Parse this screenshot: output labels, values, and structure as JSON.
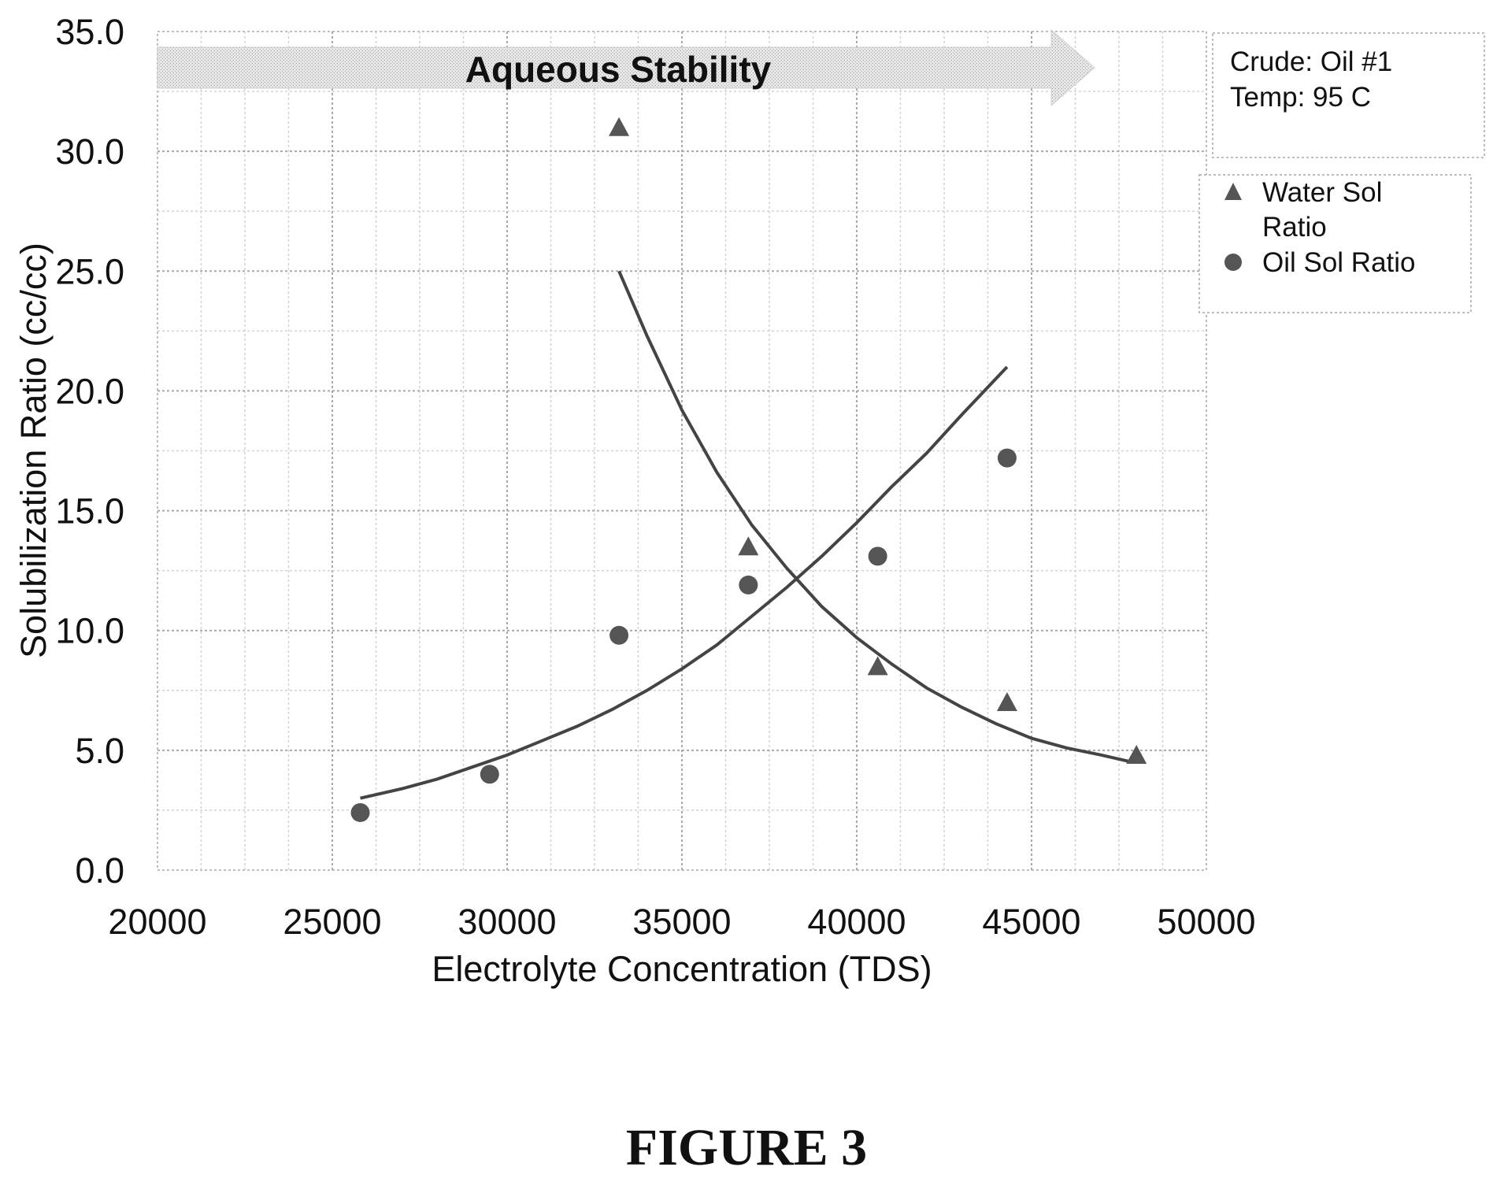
{
  "chart_data": {
    "type": "scatter",
    "xlabel": "Electrolyte Concentration (TDS)",
    "ylabel": "Solubilization Ratio (cc/cc)",
    "xlim": [
      20000,
      50000
    ],
    "ylim": [
      0,
      35
    ],
    "x_ticks": [
      "20000",
      "25000",
      "30000",
      "35000",
      "40000",
      "45000",
      "50000"
    ],
    "y_ticks": [
      "0.0",
      "5.0",
      "10.0",
      "15.0",
      "20.0",
      "25.0",
      "30.0",
      "35.0"
    ],
    "grid": true,
    "legend_position": "top-right",
    "series": [
      {
        "name": "Water Sol Ratio",
        "marker": "triangle",
        "color": "#555555",
        "points": [
          {
            "x": 33200,
            "y": 31.0
          },
          {
            "x": 36900,
            "y": 13.5
          },
          {
            "x": 40600,
            "y": 8.5
          },
          {
            "x": 44300,
            "y": 7.0
          },
          {
            "x": 48000,
            "y": 4.8
          }
        ],
        "trendline": [
          {
            "x": 33200,
            "y": 25.0
          },
          {
            "x": 34000,
            "y": 22.3
          },
          {
            "x": 35000,
            "y": 19.2
          },
          {
            "x": 36000,
            "y": 16.6
          },
          {
            "x": 37000,
            "y": 14.4
          },
          {
            "x": 38000,
            "y": 12.6
          },
          {
            "x": 39000,
            "y": 11.0
          },
          {
            "x": 40000,
            "y": 9.7
          },
          {
            "x": 41000,
            "y": 8.6
          },
          {
            "x": 42000,
            "y": 7.6
          },
          {
            "x": 43000,
            "y": 6.8
          },
          {
            "x": 44000,
            "y": 6.1
          },
          {
            "x": 45000,
            "y": 5.5
          },
          {
            "x": 46000,
            "y": 5.1
          },
          {
            "x": 47000,
            "y": 4.8
          },
          {
            "x": 47900,
            "y": 4.5
          }
        ]
      },
      {
        "name": "Oil Sol Ratio",
        "marker": "circle",
        "color": "#555555",
        "points": [
          {
            "x": 25800,
            "y": 2.4
          },
          {
            "x": 29500,
            "y": 4.0
          },
          {
            "x": 33200,
            "y": 9.8
          },
          {
            "x": 36900,
            "y": 11.9
          },
          {
            "x": 40600,
            "y": 13.1
          },
          {
            "x": 44300,
            "y": 17.2
          }
        ],
        "trendline": [
          {
            "x": 25800,
            "y": 3.0
          },
          {
            "x": 27000,
            "y": 3.4
          },
          {
            "x": 28000,
            "y": 3.8
          },
          {
            "x": 29000,
            "y": 4.3
          },
          {
            "x": 30000,
            "y": 4.8
          },
          {
            "x": 31000,
            "y": 5.4
          },
          {
            "x": 32000,
            "y": 6.0
          },
          {
            "x": 33000,
            "y": 6.7
          },
          {
            "x": 34000,
            "y": 7.5
          },
          {
            "x": 35000,
            "y": 8.4
          },
          {
            "x": 36000,
            "y": 9.4
          },
          {
            "x": 37000,
            "y": 10.6
          },
          {
            "x": 38000,
            "y": 11.8
          },
          {
            "x": 39000,
            "y": 13.1
          },
          {
            "x": 40000,
            "y": 14.5
          },
          {
            "x": 41000,
            "y": 16.0
          },
          {
            "x": 42000,
            "y": 17.4
          },
          {
            "x": 43000,
            "y": 19.0
          },
          {
            "x": 44300,
            "y": 21.0
          }
        ]
      }
    ],
    "annotations": {
      "banner": "Aqueous Stability",
      "note_lines": [
        "Crude: Oil #1",
        "Temp: 95 C"
      ]
    }
  },
  "caption": "FIGURE 3"
}
